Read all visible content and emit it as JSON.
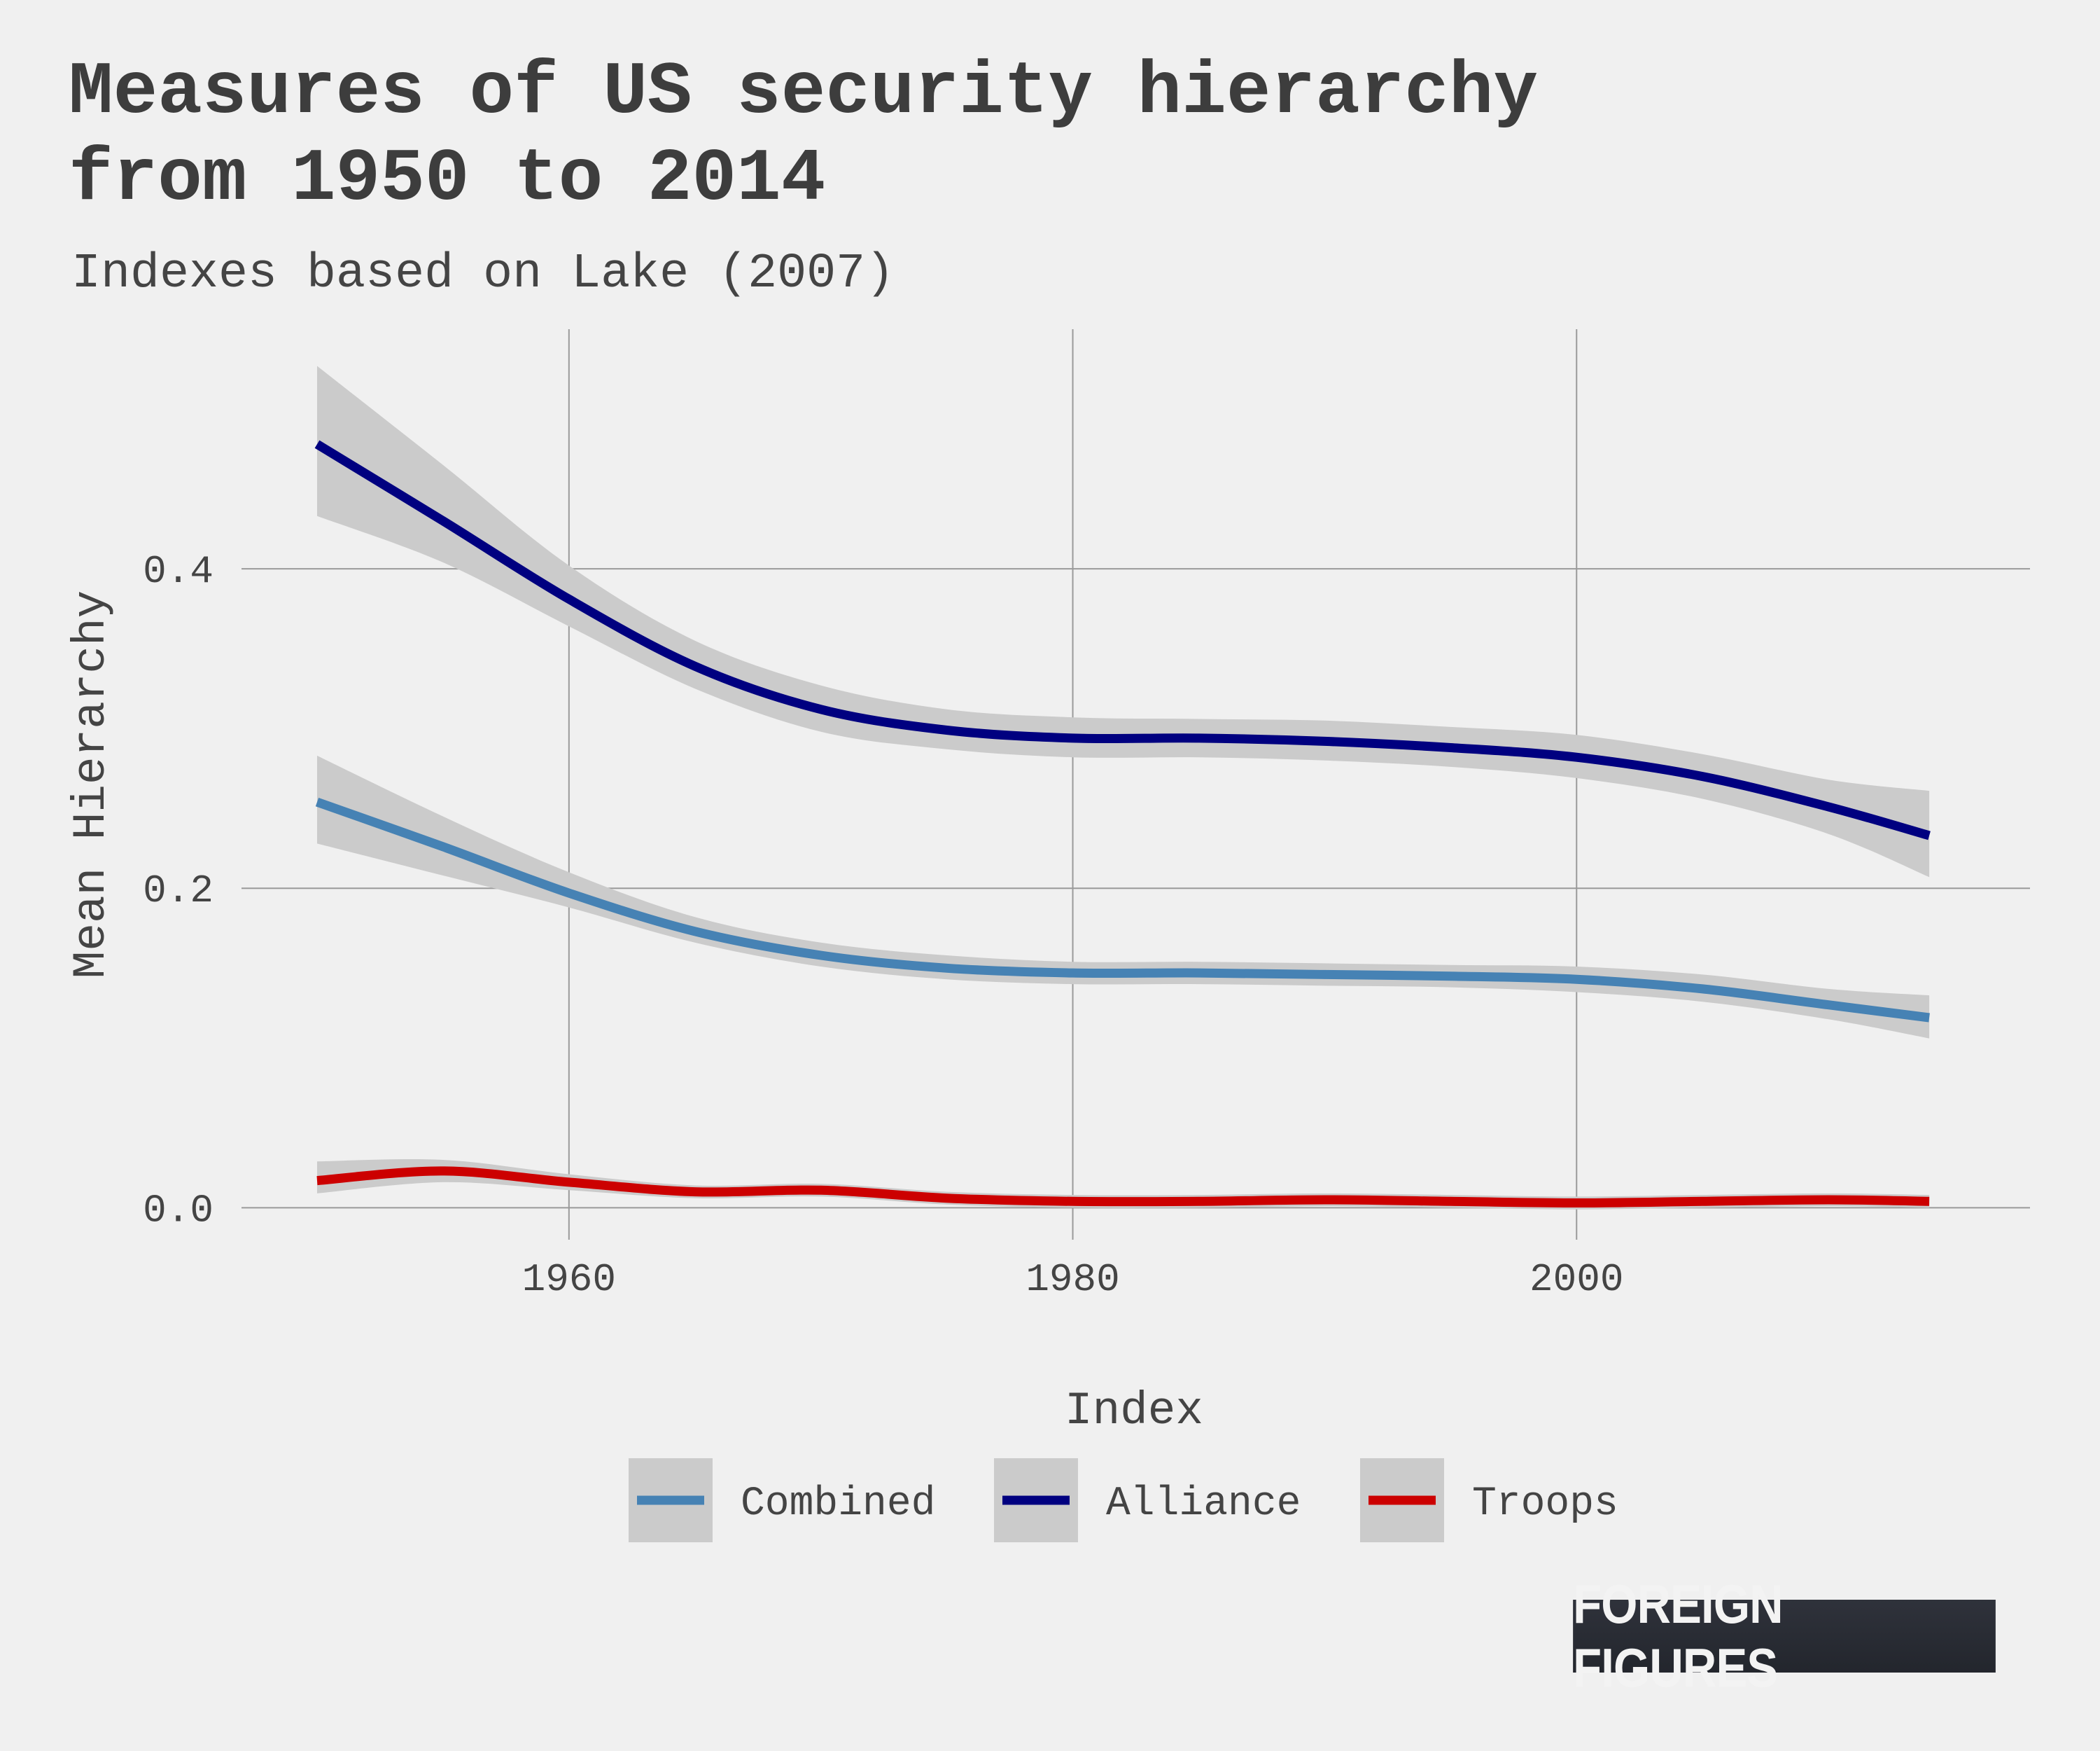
{
  "header": {
    "title_line1": "Measures of US security hierarchy",
    "title_line2": "from 1950 to 2014",
    "subtitle": "Indexes based on Lake (2007)"
  },
  "logo": {
    "text": "FOREIGN FIGURES"
  },
  "chart_data": {
    "type": "line",
    "xlabel": "Index",
    "ylabel": "Mean Hierarchy",
    "xlim": [
      1947,
      2018
    ],
    "ylim": [
      -0.02,
      0.55
    ],
    "x_ticks": [
      1960,
      1980,
      2000
    ],
    "y_ticks": [
      0.0,
      0.2,
      0.4
    ],
    "y_tick_labels": [
      "0.0",
      "0.2",
      "0.4"
    ],
    "grid": true,
    "legend_title": "Index",
    "legend_position": "bottom",
    "colors": {
      "Combined": "#4682b4",
      "Alliance": "#000080",
      "Troops": "#cc0000",
      "band": "#cbcbcb",
      "background": "#f0f0f0",
      "grid": "#9a9a9a"
    },
    "series": [
      {
        "name": "Combined",
        "x": [
          1950,
          1955,
          1960,
          1965,
          1970,
          1975,
          1980,
          1985,
          1990,
          1995,
          2000,
          2005,
          2010,
          2014
        ],
        "values": [
          0.254,
          0.226,
          0.197,
          0.173,
          0.158,
          0.15,
          0.147,
          0.147,
          0.146,
          0.145,
          0.143,
          0.137,
          0.127,
          0.119
        ],
        "lower": [
          0.228,
          0.208,
          0.188,
          0.166,
          0.151,
          0.143,
          0.14,
          0.14,
          0.139,
          0.138,
          0.135,
          0.129,
          0.118,
          0.106
        ],
        "upper": [
          0.283,
          0.245,
          0.21,
          0.182,
          0.166,
          0.158,
          0.154,
          0.154,
          0.153,
          0.152,
          0.151,
          0.146,
          0.137,
          0.133
        ]
      },
      {
        "name": "Alliance",
        "x": [
          1950,
          1955,
          1960,
          1965,
          1970,
          1975,
          1980,
          1985,
          1990,
          1995,
          2000,
          2005,
          2010,
          2014
        ],
        "values": [
          0.478,
          0.43,
          0.381,
          0.339,
          0.312,
          0.299,
          0.294,
          0.294,
          0.292,
          0.288,
          0.282,
          0.27,
          0.251,
          0.233
        ],
        "lower": [
          0.433,
          0.404,
          0.364,
          0.325,
          0.298,
          0.287,
          0.282,
          0.282,
          0.28,
          0.276,
          0.269,
          0.256,
          0.234,
          0.207
        ],
        "upper": [
          0.527,
          0.465,
          0.402,
          0.355,
          0.327,
          0.312,
          0.307,
          0.306,
          0.305,
          0.301,
          0.296,
          0.284,
          0.268,
          0.261
        ]
      },
      {
        "name": "Troops",
        "x": [
          1950,
          1955,
          1960,
          1965,
          1970,
          1975,
          1980,
          1985,
          1990,
          1995,
          2000,
          2005,
          2010,
          2014
        ],
        "values": [
          0.017,
          0.023,
          0.016,
          0.01,
          0.011,
          0.006,
          0.004,
          0.004,
          0.005,
          0.004,
          0.003,
          0.004,
          0.005,
          0.004
        ],
        "lower": [
          0.009,
          0.016,
          0.011,
          0.006,
          0.007,
          0.002,
          0.0,
          0.0,
          0.001,
          0.0,
          -0.001,
          0.0,
          0.001,
          0.0
        ],
        "upper": [
          0.029,
          0.03,
          0.021,
          0.014,
          0.015,
          0.01,
          0.008,
          0.008,
          0.009,
          0.008,
          0.007,
          0.008,
          0.009,
          0.008
        ]
      }
    ]
  }
}
